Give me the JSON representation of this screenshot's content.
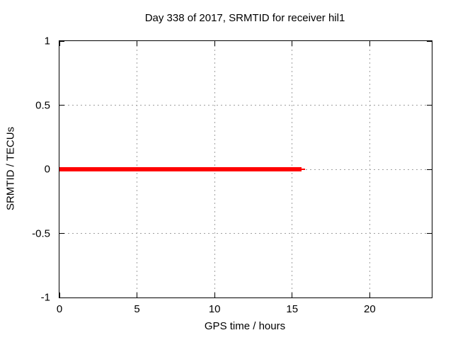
{
  "chart_data": {
    "type": "line",
    "title": "Day 338 of 2017, SRMTID for receiver hil1",
    "xlabel": "GPS time / hours",
    "ylabel": "SRMTID / TECUs",
    "xlim": [
      0,
      24
    ],
    "ylim": [
      -1,
      1
    ],
    "xticks": [
      0,
      5,
      10,
      15,
      20
    ],
    "xticklabels": [
      "0",
      "5",
      "10",
      "15",
      "20"
    ],
    "yticks": [
      1,
      0.5,
      0,
      -0.5,
      -1
    ],
    "yticklabels": [
      "1",
      "0.5",
      "0",
      "-0.5",
      "-1"
    ],
    "grid": true,
    "legend_position": "none",
    "colors": {
      "series": "#ff0000",
      "grid": "#a0a0a0",
      "axis": "#000000",
      "background": "#ffffff",
      "text": "#000000"
    },
    "series": [
      {
        "name": "SRMTID",
        "color": "#ff0000",
        "value_description": "SRMTID equals 0 TECUs for the whole observed span 0 to about 15.85 hours",
        "segments": [
          {
            "x": [
              0,
              15.6
            ],
            "y": [
              0,
              0
            ],
            "linewidth": 6
          },
          {
            "x": [
              15.6,
              15.85
            ],
            "y": [
              0,
              0
            ],
            "linewidth": 2
          }
        ]
      }
    ]
  }
}
